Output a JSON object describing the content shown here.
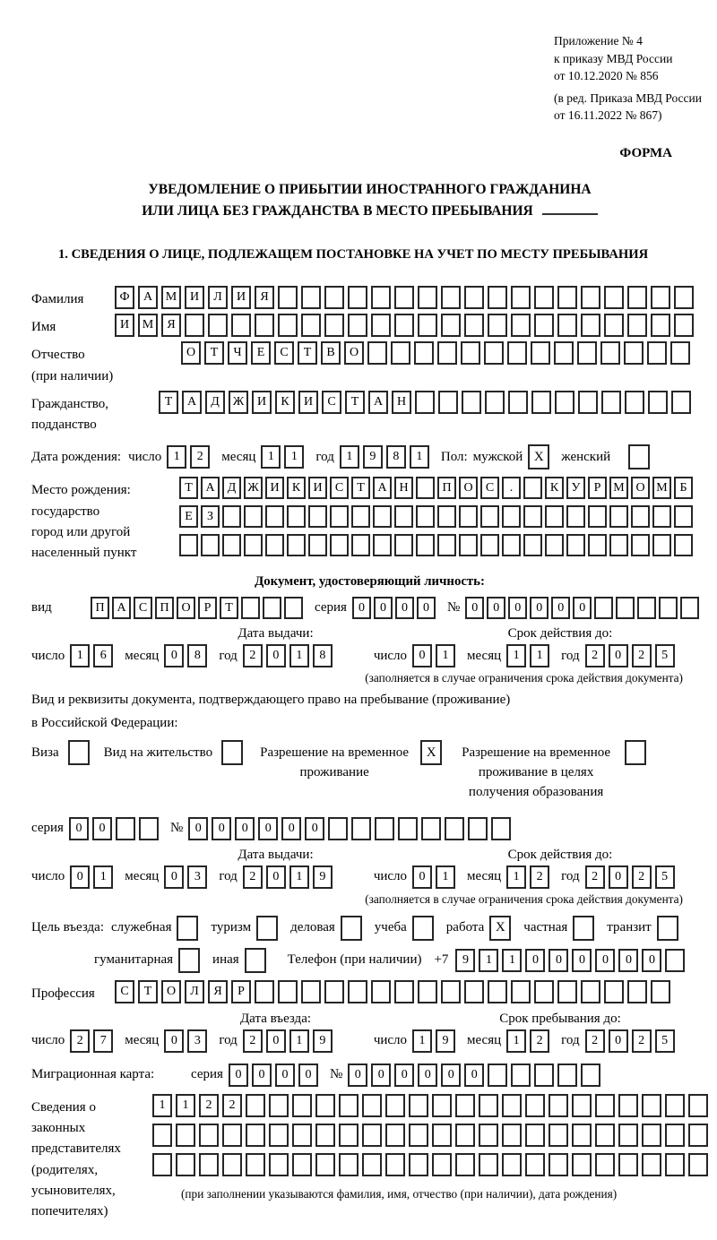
{
  "header": {
    "appendix_line1": "Приложение № 4",
    "appendix_line2": "к приказу МВД России",
    "appendix_line3": "от 10.12.2020 № 856",
    "amendment_line1": "(в ред. Приказа МВД России",
    "amendment_line2": "от 16.11.2022 № 867)",
    "form_label": "ФОРМА",
    "title_line1": "УВЕДОМЛЕНИЕ О ПРИБЫТИИ ИНОСТРАННОГО ГРАЖДАНИНА",
    "title_line2": "ИЛИ ЛИЦА БЕЗ ГРАЖДАНСТВА В МЕСТО ПРЕБЫВАНИЯ",
    "section1_title": "1. СВЕДЕНИЯ О ЛИЦЕ, ПОДЛЕЖАЩЕМ ПОСТАНОВКЕ НА УЧЕТ ПО МЕСТУ ПРЕБЫВАНИЯ"
  },
  "labels": {
    "day": "число",
    "month": "месяц",
    "year": "год",
    "series": "серия",
    "number": "№",
    "issue_date": "Дата выдачи:",
    "valid_until": "Срок действия до:",
    "restriction_note": "(заполняется в случае ограничения срока действия документа)"
  },
  "person": {
    "surname": {
      "label": "Фамилия",
      "value": "ФАМИЛИЯ"
    },
    "given_name": {
      "label": "Имя",
      "value": "ИМЯ"
    },
    "patronymic": {
      "label1": "Отчество",
      "label2": "(при наличии)",
      "value": "ОТЧЕСТВО"
    },
    "citizenship": {
      "label1": "Гражданство,",
      "label2": "подданство",
      "value": "ТАДЖИКИСТАН"
    },
    "birth_date": {
      "label": "Дата рождения:",
      "day": "12",
      "month": "11",
      "year": "1981"
    },
    "sex": {
      "label": "Пол:",
      "male_label": "мужской",
      "male_value": "X",
      "female_label": "женский",
      "female_value": ""
    },
    "birth_place": {
      "label": "Место рождения:",
      "sub_label1": "государство",
      "sub_label2": "город или другой",
      "sub_label3": "населенный пункт",
      "line1": "ТАДЖИКИСТАН ПОС. КУРМОМБ",
      "line2": "ЕЗ",
      "line3": ""
    }
  },
  "identity_doc": {
    "section_title": "Документ, удостоверяющий личность:",
    "kind_label": "вид",
    "kind_value": "ПАСПОРТ",
    "series_value": "0000",
    "number_value": "000000",
    "issued": {
      "day": "16",
      "month": "08",
      "year": "2018"
    },
    "valid": {
      "day": "01",
      "month": "11",
      "year": "2025"
    }
  },
  "residence_doc": {
    "intro_line1": "Вид и реквизиты документа, подтверждающего право на пребывание (проживание)",
    "intro_line2": "в Российской Федерации:",
    "visa_label": "Виза",
    "visa_value": "",
    "residence_permit_label": "Вид на жительство",
    "residence_permit_value": "",
    "temp_permit_label": "Разрешение на временное проживание",
    "temp_permit_value": "X",
    "edu_permit_label": "Разрешение на временное проживание в целях получения образования",
    "edu_permit_value": "",
    "series_value": "00",
    "number_value": "000000",
    "issued": {
      "day": "01",
      "month": "03",
      "year": "2019"
    },
    "valid": {
      "day": "01",
      "month": "12",
      "year": "2025"
    }
  },
  "visit": {
    "purpose_label": "Цель въезда:",
    "options_row1": [
      {
        "label": "служебная",
        "value": ""
      },
      {
        "label": "туризм",
        "value": ""
      },
      {
        "label": "деловая",
        "value": ""
      },
      {
        "label": "учеба",
        "value": ""
      },
      {
        "label": "работа",
        "value": "X"
      },
      {
        "label": "частная",
        "value": ""
      },
      {
        "label": "транзит",
        "value": ""
      }
    ],
    "options_row2": [
      {
        "label": "гуманитарная",
        "value": ""
      },
      {
        "label": "иная",
        "value": ""
      }
    ],
    "phone_label": "Телефон (при наличии)",
    "phone_prefix": "+7",
    "phone_value": "911000000",
    "profession_label": "Профессия",
    "profession_value": "СТОЛЯР",
    "entry_date_label": "Дата въезда:",
    "entry_date": {
      "day": "27",
      "month": "03",
      "year": "2019"
    },
    "stay_until_label": "Срок пребывания до:",
    "stay_until": {
      "day": "19",
      "month": "12",
      "year": "2025"
    }
  },
  "migration_card": {
    "label": "Миграционная карта:",
    "series_value": "0000",
    "number_value": "000000"
  },
  "representatives": {
    "label_line1": "Сведения о",
    "label_line2": "законных",
    "label_line3": "представителях",
    "label_line4": "(родителях,",
    "label_line5": "усыновителях,",
    "label_line6": "попечителях)",
    "line1": "1122",
    "line2": "",
    "line3": "",
    "note": "(при заполнении указываются фамилия, имя, отчество (при наличии), дата рождения)"
  }
}
